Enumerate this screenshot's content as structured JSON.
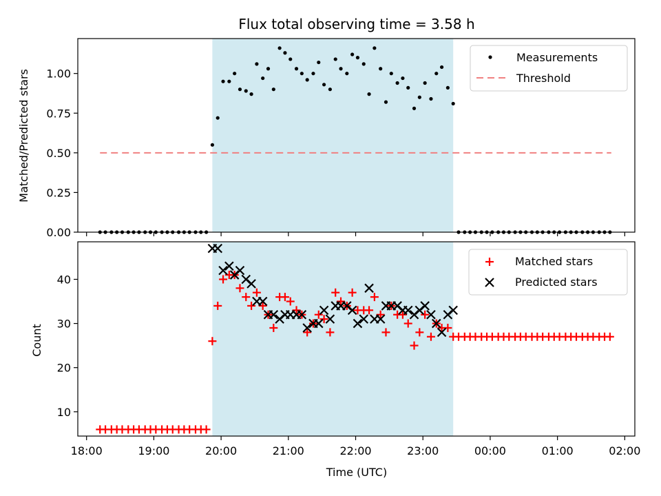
{
  "chart_data": [
    {
      "type": "scatter",
      "title": "Flux total observing time = 3.58 h",
      "xlabel": "",
      "ylabel": "Matched/Predicted stars",
      "ylim": [
        0,
        1.22
      ],
      "yticks": [
        "0.00",
        "0.25",
        "0.50",
        "0.75",
        "1.00"
      ],
      "ytick_values": [
        0,
        0.25,
        0.5,
        0.75,
        1.0
      ],
      "x_unit": "hours since 18:00 UTC",
      "shaded_interval": [
        19.87,
        23.45
      ],
      "shade_color": "#add8e6",
      "legend_position": "upper right",
      "series": [
        {
          "name": "Measurements",
          "kind": "points",
          "color": "#000000",
          "x_before": [
            18.2,
            18.28,
            18.37,
            18.45,
            18.53,
            18.62,
            18.7,
            18.78,
            18.87,
            18.95,
            19.03,
            19.12,
            19.2,
            19.28,
            19.37,
            19.45,
            19.53,
            19.62,
            19.7,
            19.78
          ],
          "y_before": [
            0,
            0,
            0,
            0,
            0,
            0,
            0,
            0,
            0,
            0,
            0,
            0,
            0,
            0,
            0,
            0,
            0,
            0,
            0,
            0
          ],
          "x_during": [
            19.87,
            19.95,
            20.03,
            20.12,
            20.2,
            20.28,
            20.37,
            20.45,
            20.53,
            20.62,
            20.7,
            20.78,
            20.87,
            20.95,
            21.03,
            21.12,
            21.2,
            21.28,
            21.37,
            21.45,
            21.53,
            21.62,
            21.7,
            21.78,
            21.87,
            21.95,
            22.03,
            22.12,
            22.2,
            22.28,
            22.37,
            22.45,
            22.53,
            22.62,
            22.7,
            22.78,
            22.87,
            22.95,
            23.03,
            23.12,
            23.2,
            23.28,
            23.37,
            23.45
          ],
          "y_during": [
            0.55,
            0.72,
            0.95,
            0.95,
            1.0,
            0.9,
            0.89,
            0.87,
            1.06,
            0.97,
            1.03,
            0.9,
            1.16,
            1.13,
            1.09,
            1.03,
            1.0,
            0.96,
            1.0,
            1.07,
            0.93,
            0.9,
            1.09,
            1.03,
            1.0,
            1.12,
            1.1,
            1.06,
            0.87,
            1.16,
            1.03,
            0.82,
            1.0,
            0.94,
            0.97,
            0.91,
            0.78,
            0.85,
            0.94,
            0.84,
            1.0,
            1.04,
            0.91,
            0.81
          ],
          "x_after": [
            23.53,
            23.62,
            23.7,
            23.78,
            23.87,
            23.95,
            24.03,
            24.12,
            24.2,
            24.28,
            24.37,
            24.45,
            24.53,
            24.62,
            24.7,
            24.78,
            24.87,
            24.95,
            25.03,
            25.12,
            25.2,
            25.28,
            25.37,
            25.45,
            25.53,
            25.62,
            25.7,
            25.78
          ],
          "y_after": [
            0,
            0,
            0,
            0,
            0,
            0,
            0,
            0,
            0,
            0,
            0,
            0,
            0,
            0,
            0,
            0,
            0,
            0,
            0,
            0,
            0,
            0,
            0,
            0,
            0,
            0,
            0,
            0
          ]
        },
        {
          "name": "Threshold",
          "kind": "dashed-line",
          "color": "#f08080",
          "x": [
            18.2,
            25.8
          ],
          "y": [
            0.5,
            0.5
          ]
        }
      ]
    },
    {
      "type": "scatter",
      "title": "",
      "xlabel": "Time (UTC)",
      "ylabel": "Count",
      "ylim": [
        4.5,
        48.5
      ],
      "yticks": [
        "10",
        "20",
        "30",
        "40"
      ],
      "ytick_values": [
        10,
        20,
        30,
        40
      ],
      "xlim": [
        17.87,
        26.15
      ],
      "xticks": [
        "18:00",
        "19:00",
        "20:00",
        "21:00",
        "22:00",
        "23:00",
        "00:00",
        "01:00",
        "02:00"
      ],
      "xtick_values": [
        18,
        19,
        20,
        21,
        22,
        23,
        24,
        25,
        26
      ],
      "x_unit": "hours since 18:00 UTC",
      "shaded_interval": [
        19.87,
        23.45
      ],
      "shade_color": "#add8e6",
      "legend_position": "upper right",
      "series": [
        {
          "name": "Matched stars",
          "kind": "plus",
          "color": "#ff0000",
          "x_before": [
            18.2,
            18.28,
            18.37,
            18.45,
            18.53,
            18.62,
            18.7,
            18.78,
            18.87,
            18.95,
            19.03,
            19.12,
            19.2,
            19.28,
            19.37,
            19.45,
            19.53,
            19.62,
            19.7,
            19.78
          ],
          "y_before": [
            6,
            6,
            6,
            6,
            6,
            6,
            6,
            6,
            6,
            6,
            6,
            6,
            6,
            6,
            6,
            6,
            6,
            6,
            6,
            6
          ],
          "x_during": [
            19.87,
            19.95,
            20.03,
            20.12,
            20.2,
            20.28,
            20.37,
            20.45,
            20.53,
            20.62,
            20.7,
            20.78,
            20.87,
            20.95,
            21.03,
            21.12,
            21.2,
            21.28,
            21.37,
            21.45,
            21.53,
            21.62,
            21.7,
            21.78,
            21.87,
            21.95,
            22.03,
            22.12,
            22.2,
            22.28,
            22.37,
            22.45,
            22.53,
            22.62,
            22.7,
            22.78,
            22.87,
            22.95,
            23.03,
            23.12,
            23.2,
            23.28,
            23.37,
            23.45
          ],
          "y_during": [
            26,
            34,
            40,
            41,
            41,
            38,
            36,
            34,
            37,
            34,
            32,
            29,
            36,
            36,
            35,
            33,
            32,
            28,
            30,
            32,
            31,
            28,
            37,
            35,
            34,
            37,
            33,
            33,
            33,
            36,
            32,
            28,
            34,
            32,
            32,
            30,
            25,
            28,
            32,
            27,
            30,
            29,
            29,
            27
          ],
          "x_after": [
            23.53,
            23.62,
            23.7,
            23.78,
            23.87,
            23.95,
            24.03,
            24.12,
            24.2,
            24.28,
            24.37,
            24.45,
            24.53,
            24.62,
            24.7,
            24.78,
            24.87,
            24.95,
            25.03,
            25.12,
            25.2,
            25.28,
            25.37,
            25.45,
            25.53,
            25.62,
            25.7,
            25.78
          ],
          "y_after": [
            27,
            27,
            27,
            27,
            27,
            27,
            27,
            27,
            27,
            27,
            27,
            27,
            27,
            27,
            27,
            27,
            27,
            27,
            27,
            27,
            27,
            27,
            27,
            27,
            27,
            27,
            27,
            27
          ]
        },
        {
          "name": "Predicted stars",
          "kind": "cross",
          "color": "#000000",
          "x": [
            19.87,
            19.95,
            20.03,
            20.12,
            20.2,
            20.28,
            20.37,
            20.45,
            20.53,
            20.62,
            20.7,
            20.78,
            20.87,
            20.95,
            21.03,
            21.12,
            21.2,
            21.28,
            21.37,
            21.45,
            21.53,
            21.62,
            21.7,
            21.78,
            21.87,
            21.95,
            22.03,
            22.12,
            22.2,
            22.28,
            22.37,
            22.45,
            22.53,
            22.62,
            22.7,
            22.78,
            22.87,
            22.95,
            23.03,
            23.12,
            23.2,
            23.28,
            23.37,
            23.45
          ],
          "y": [
            47,
            47,
            42,
            43,
            41,
            42,
            40,
            39,
            35,
            35,
            32,
            32,
            31,
            32,
            32,
            32,
            32,
            29,
            30,
            30,
            33,
            31,
            34,
            34,
            34,
            33,
            30,
            31,
            38,
            31,
            31,
            34,
            34,
            34,
            33,
            33,
            32,
            33,
            34,
            32,
            30,
            28,
            32,
            33
          ]
        }
      ]
    }
  ]
}
